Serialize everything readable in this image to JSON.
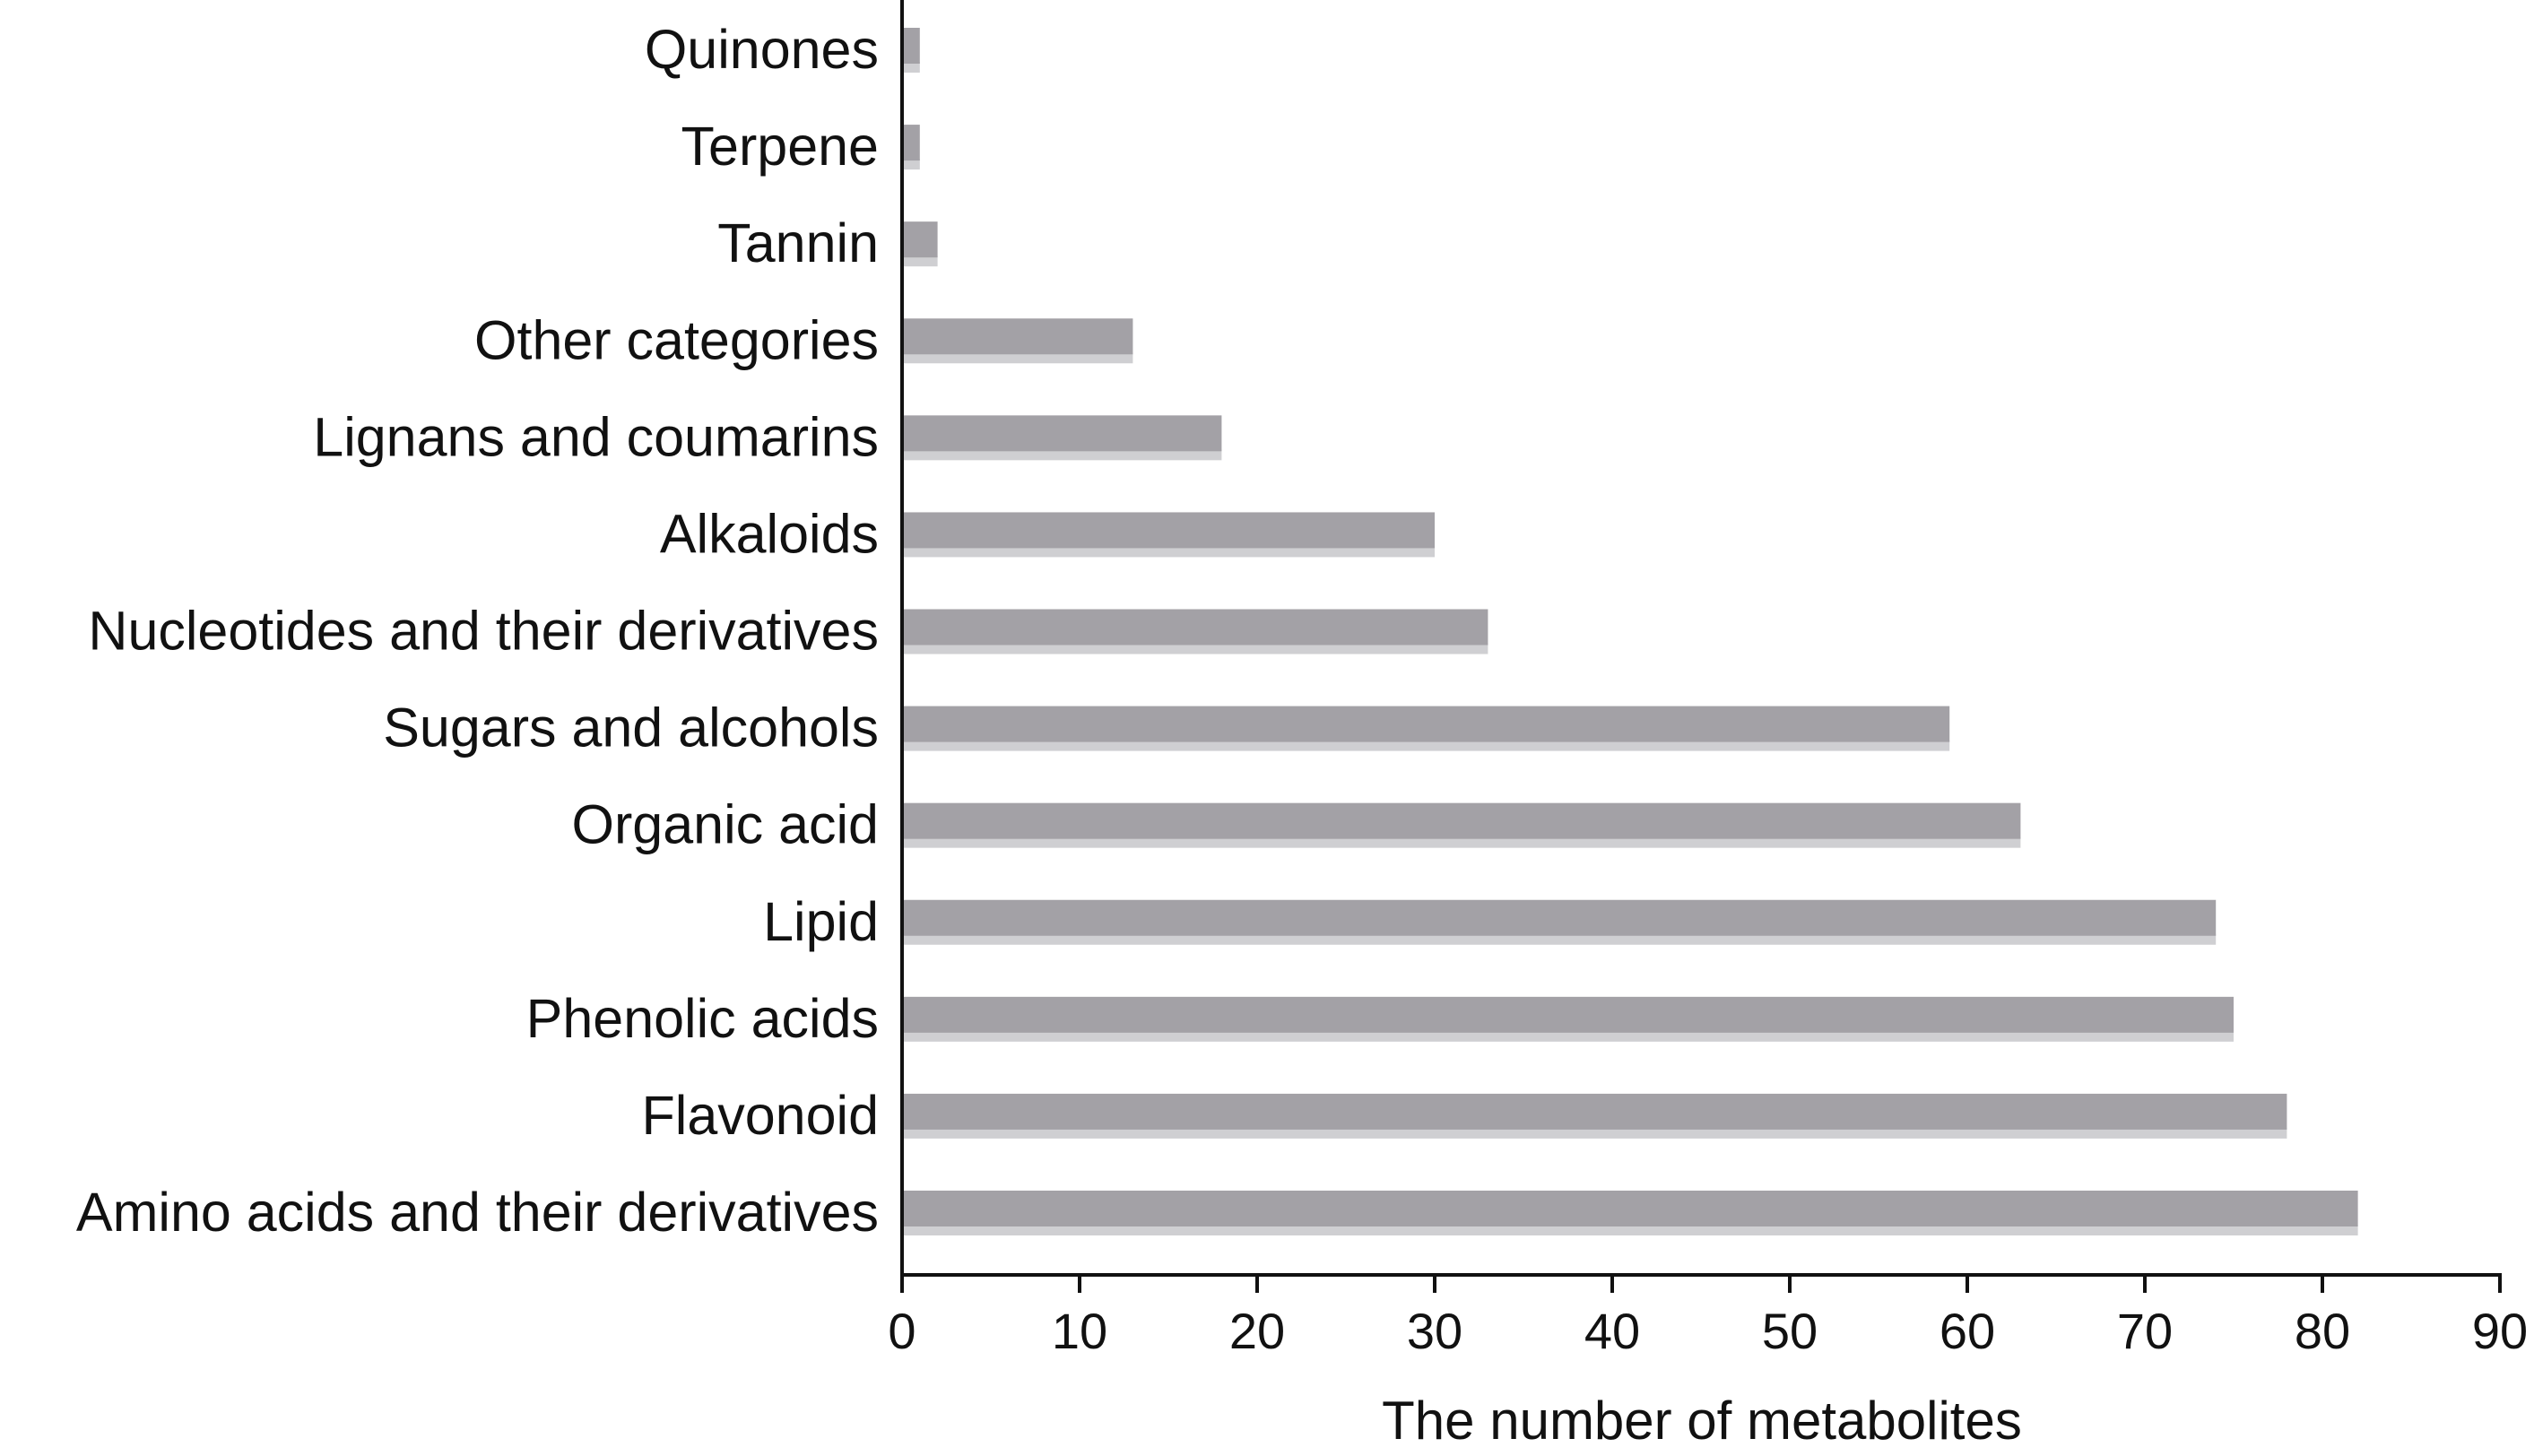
{
  "chart_data": {
    "type": "bar",
    "orientation": "horizontal",
    "title": "",
    "xlabel": "The number of metabolites",
    "ylabel": "",
    "categories": [
      "Quinones",
      "Terpene",
      "Tannin",
      "Other categories",
      "Lignans and coumarins",
      "Alkaloids",
      "Nucleotides and their derivatives",
      "Sugars and alcohols",
      "Organic acid",
      "Lipid",
      "Phenolic acids",
      "Flavonoid",
      "Amino acids and their derivatives"
    ],
    "values": [
      1,
      1,
      2,
      13,
      18,
      30,
      33,
      59,
      63,
      74,
      75,
      78,
      82
    ],
    "xlim": [
      0,
      90
    ],
    "xticks": [
      "0",
      "10",
      "20",
      "30",
      "40",
      "50",
      "60",
      "70",
      "80",
      "90"
    ],
    "grid": false,
    "legend": "none",
    "colors": {
      "bar": "#a3a1a6",
      "bar_shadow": "#cfcfd2",
      "axis": "#111111",
      "text": "#111111"
    }
  }
}
